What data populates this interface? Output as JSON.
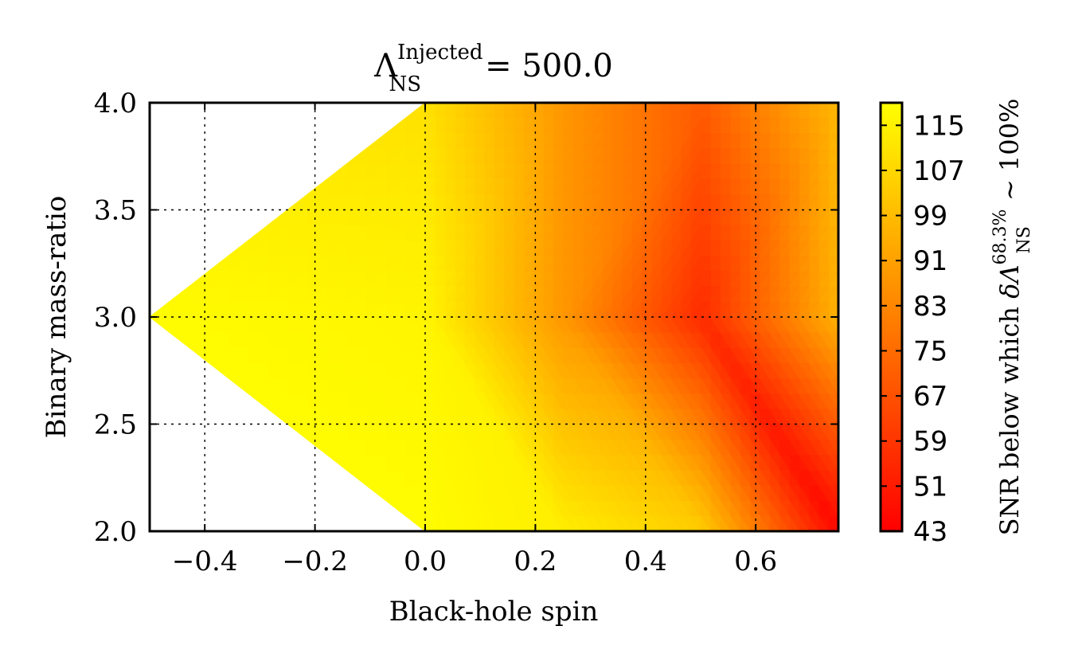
{
  "chart_data": {
    "type": "heatmap",
    "title": {
      "symbol": "Λ",
      "superscript": "Injected",
      "subscript": "NS",
      "value_text": "= 500.0"
    },
    "xlabel": "Black-hole spin",
    "ylabel": "Binary mass-ratio",
    "xlim": [
      -0.5,
      0.75
    ],
    "ylim": [
      2.0,
      4.0
    ],
    "x_ticks": [
      -0.4,
      -0.2,
      0.0,
      0.2,
      0.4,
      0.6
    ],
    "x_tick_labels": [
      "−0.4",
      "−0.2",
      "0.0",
      "0.2",
      "0.4",
      "0.6"
    ],
    "y_ticks": [
      2.0,
      2.5,
      3.0,
      3.5,
      4.0
    ],
    "y_tick_labels": [
      "2.0",
      "2.5",
      "3.0",
      "3.5",
      "4.0"
    ],
    "grid": true,
    "colorbar": {
      "label_prefix": "SNR below which ",
      "label_symbol": "δΛ",
      "label_superscript": "68.3%",
      "label_subscript": "NS",
      "label_suffix": " ∼ 100%",
      "range": [
        43,
        119
      ],
      "ticks": [
        43,
        51,
        59,
        67,
        75,
        83,
        91,
        99,
        107,
        115
      ],
      "tick_labels": [
        "43",
        "51",
        "59",
        "67",
        "75",
        "83",
        "91",
        "99",
        "107",
        "115"
      ],
      "colormap": "autumn",
      "color_low": "#ff0000",
      "color_high": "#ffff00"
    },
    "grid_points": [
      {
        "x": -0.5,
        "y": 3.0,
        "value": 118
      },
      {
        "x": 0.0,
        "y": 2.0,
        "value": 118
      },
      {
        "x": 0.0,
        "y": 3.0,
        "value": 116
      },
      {
        "x": 0.0,
        "y": 4.0,
        "value": 110
      },
      {
        "x": 0.25,
        "y": 2.0,
        "value": 114
      },
      {
        "x": 0.25,
        "y": 3.0,
        "value": 88
      },
      {
        "x": 0.25,
        "y": 4.0,
        "value": 88
      },
      {
        "x": 0.5,
        "y": 2.0,
        "value": 104
      },
      {
        "x": 0.5,
        "y": 3.0,
        "value": 56
      },
      {
        "x": 0.5,
        "y": 4.0,
        "value": 70
      },
      {
        "x": 0.75,
        "y": 2.0,
        "value": 45
      },
      {
        "x": 0.75,
        "y": 3.0,
        "value": 96
      },
      {
        "x": 0.75,
        "y": 4.0,
        "value": 98
      }
    ],
    "triangles": [
      [
        0,
        2,
        1
      ],
      [
        0,
        3,
        2
      ],
      [
        1,
        2,
        4
      ],
      [
        2,
        5,
        4
      ],
      [
        2,
        3,
        6
      ],
      [
        2,
        6,
        5
      ],
      [
        4,
        5,
        7
      ],
      [
        5,
        8,
        7
      ],
      [
        5,
        6,
        9
      ],
      [
        5,
        9,
        8
      ],
      [
        7,
        8,
        10
      ],
      [
        8,
        11,
        10
      ],
      [
        8,
        9,
        12
      ],
      [
        8,
        12,
        11
      ]
    ]
  }
}
